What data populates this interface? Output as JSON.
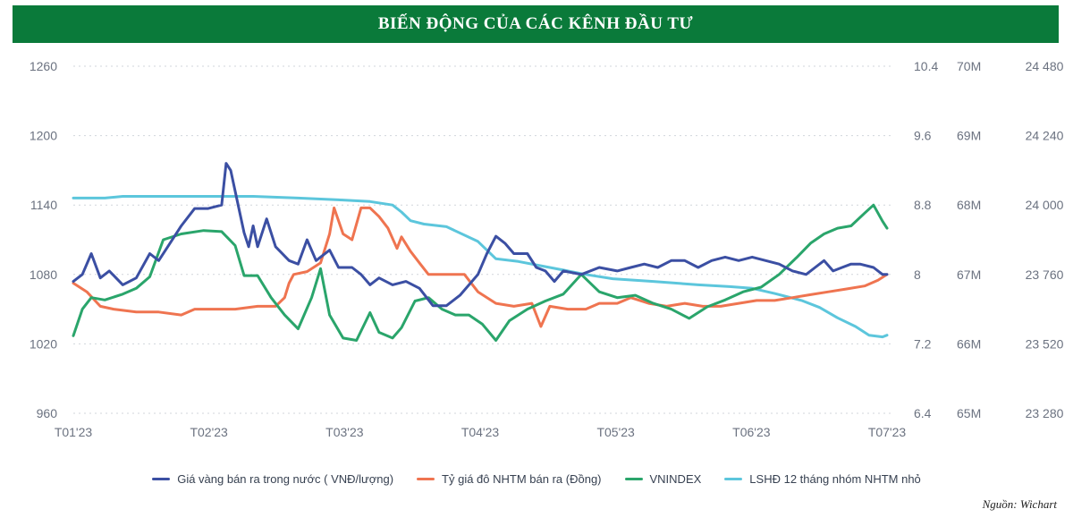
{
  "header": {
    "title": "BIẾN ĐỘNG CỦA CÁC KÊNH ĐẦU TƯ"
  },
  "source": "Nguồn: Wichart",
  "colors": {
    "banner": "#0a7a3a",
    "gold": "#3b4fa3",
    "fx": "#ef7450",
    "vnindex": "#2aa56b",
    "deposit": "#5cc6dc",
    "grid": "#d1d5db"
  },
  "chart_data": {
    "type": "line",
    "title": "",
    "x_ticks": [
      "T01'23",
      "T02'23",
      "T03'23",
      "T04'23",
      "T05'23",
      "T06'23",
      "T07'23"
    ],
    "x_range": [
      "2023-01-01",
      "2023-07-01"
    ],
    "grid": "horizontal dotted",
    "legend_position": "bottom",
    "axes": {
      "left": {
        "series": "VNINDEX",
        "ticks": [
          "1260",
          "1200",
          "1140",
          "1080",
          "1020",
          "960"
        ],
        "range": [
          960,
          1260
        ]
      },
      "right1": {
        "series": "LSHĐ 12 tháng nhóm NHTM nhỏ",
        "ticks": [
          "10.4",
          "9.6",
          "8.8",
          "8",
          "7.2",
          "6.4"
        ],
        "range": [
          6.4,
          10.4
        ]
      },
      "right2": {
        "series": "Giá vàng bán ra trong nước ( VNĐ/lượng)",
        "ticks": [
          "70M",
          "69M",
          "68M",
          "67M",
          "66M",
          "65M"
        ],
        "range": [
          65000000,
          70000000
        ]
      },
      "right3": {
        "series": "Tỷ giá đô NHTM bán ra (Đồng)",
        "ticks": [
          "24 480",
          "24 240",
          "24 000",
          "23 760",
          "23 520",
          "23 280"
        ],
        "range": [
          23280,
          24480
        ]
      }
    },
    "series": [
      {
        "name": "Giá vàng bán ra trong nước ( VNĐ/lượng)",
        "axis": "right2",
        "color": "#3b4fa3",
        "points": [
          [
            "2023-01-01",
            66900000
          ],
          [
            "2023-01-03",
            67000000
          ],
          [
            "2023-01-05",
            67300000
          ],
          [
            "2023-01-07",
            66950000
          ],
          [
            "2023-01-09",
            67050000
          ],
          [
            "2023-01-12",
            66850000
          ],
          [
            "2023-01-15",
            66950000
          ],
          [
            "2023-01-18",
            67300000
          ],
          [
            "2023-01-20",
            67200000
          ],
          [
            "2023-01-22",
            67400000
          ],
          [
            "2023-01-25",
            67700000
          ],
          [
            "2023-01-28",
            67950000
          ],
          [
            "2023-01-31",
            67950000
          ],
          [
            "2023-02-03",
            68000000
          ],
          [
            "2023-02-04",
            68600000
          ],
          [
            "2023-02-05",
            68500000
          ],
          [
            "2023-02-07",
            67900000
          ],
          [
            "2023-02-08",
            67600000
          ],
          [
            "2023-02-09",
            67400000
          ],
          [
            "2023-02-10",
            67700000
          ],
          [
            "2023-02-11",
            67400000
          ],
          [
            "2023-02-13",
            67800000
          ],
          [
            "2023-02-15",
            67400000
          ],
          [
            "2023-02-18",
            67200000
          ],
          [
            "2023-02-20",
            67150000
          ],
          [
            "2023-02-22",
            67500000
          ],
          [
            "2023-02-24",
            67200000
          ],
          [
            "2023-02-27",
            67350000
          ],
          [
            "2023-03-01",
            67100000
          ],
          [
            "2023-03-04",
            67100000
          ],
          [
            "2023-03-06",
            67000000
          ],
          [
            "2023-03-08",
            66850000
          ],
          [
            "2023-03-10",
            66950000
          ],
          [
            "2023-03-13",
            66850000
          ],
          [
            "2023-03-16",
            66900000
          ],
          [
            "2023-03-19",
            66800000
          ],
          [
            "2023-03-22",
            66550000
          ],
          [
            "2023-03-25",
            66550000
          ],
          [
            "2023-03-28",
            66700000
          ],
          [
            "2023-04-01",
            67000000
          ],
          [
            "2023-04-03",
            67300000
          ],
          [
            "2023-04-05",
            67550000
          ],
          [
            "2023-04-07",
            67450000
          ],
          [
            "2023-04-09",
            67300000
          ],
          [
            "2023-04-12",
            67300000
          ],
          [
            "2023-04-14",
            67100000
          ],
          [
            "2023-04-16",
            67050000
          ],
          [
            "2023-04-18",
            66900000
          ],
          [
            "2023-04-20",
            67050000
          ],
          [
            "2023-04-24",
            67000000
          ],
          [
            "2023-04-28",
            67100000
          ],
          [
            "2023-05-02",
            67050000
          ],
          [
            "2023-05-05",
            67100000
          ],
          [
            "2023-05-08",
            67150000
          ],
          [
            "2023-05-11",
            67100000
          ],
          [
            "2023-05-14",
            67200000
          ],
          [
            "2023-05-17",
            67200000
          ],
          [
            "2023-05-20",
            67100000
          ],
          [
            "2023-05-23",
            67200000
          ],
          [
            "2023-05-26",
            67250000
          ],
          [
            "2023-05-29",
            67200000
          ],
          [
            "2023-06-01",
            67250000
          ],
          [
            "2023-06-04",
            67200000
          ],
          [
            "2023-06-07",
            67150000
          ],
          [
            "2023-06-10",
            67050000
          ],
          [
            "2023-06-13",
            67000000
          ],
          [
            "2023-06-15",
            67100000
          ],
          [
            "2023-06-17",
            67200000
          ],
          [
            "2023-06-19",
            67050000
          ],
          [
            "2023-06-21",
            67100000
          ],
          [
            "2023-06-23",
            67150000
          ],
          [
            "2023-06-25",
            67150000
          ],
          [
            "2023-06-28",
            67100000
          ],
          [
            "2023-06-30",
            67000000
          ],
          [
            "2023-07-01",
            67000000
          ]
        ]
      },
      {
        "name": "Tỷ giá đô NHTM bán ra (Đồng)",
        "axis": "right3",
        "color": "#ef7450",
        "points": [
          [
            "2023-01-01",
            23730
          ],
          [
            "2023-01-04",
            23700
          ],
          [
            "2023-01-07",
            23650
          ],
          [
            "2023-01-10",
            23640
          ],
          [
            "2023-01-15",
            23630
          ],
          [
            "2023-01-20",
            23630
          ],
          [
            "2023-01-25",
            23620
          ],
          [
            "2023-01-28",
            23640
          ],
          [
            "2023-02-01",
            23640
          ],
          [
            "2023-02-06",
            23640
          ],
          [
            "2023-02-11",
            23650
          ],
          [
            "2023-02-15",
            23650
          ],
          [
            "2023-02-17",
            23680
          ],
          [
            "2023-02-18",
            23730
          ],
          [
            "2023-02-19",
            23760
          ],
          [
            "2023-02-22",
            23770
          ],
          [
            "2023-02-25",
            23800
          ],
          [
            "2023-02-27",
            23900
          ],
          [
            "2023-02-28",
            23990
          ],
          [
            "2023-03-02",
            23900
          ],
          [
            "2023-03-04",
            23880
          ],
          [
            "2023-03-06",
            23990
          ],
          [
            "2023-03-08",
            23990
          ],
          [
            "2023-03-10",
            23960
          ],
          [
            "2023-03-12",
            23920
          ],
          [
            "2023-03-14",
            23850
          ],
          [
            "2023-03-15",
            23890
          ],
          [
            "2023-03-17",
            23840
          ],
          [
            "2023-03-19",
            23800
          ],
          [
            "2023-03-21",
            23760
          ],
          [
            "2023-03-25",
            23760
          ],
          [
            "2023-03-29",
            23760
          ],
          [
            "2023-04-01",
            23700
          ],
          [
            "2023-04-05",
            23660
          ],
          [
            "2023-04-09",
            23650
          ],
          [
            "2023-04-13",
            23660
          ],
          [
            "2023-04-15",
            23580
          ],
          [
            "2023-04-17",
            23650
          ],
          [
            "2023-04-21",
            23640
          ],
          [
            "2023-04-25",
            23640
          ],
          [
            "2023-04-28",
            23660
          ],
          [
            "2023-05-02",
            23660
          ],
          [
            "2023-05-05",
            23680
          ],
          [
            "2023-05-09",
            23660
          ],
          [
            "2023-05-13",
            23650
          ],
          [
            "2023-05-17",
            23660
          ],
          [
            "2023-05-21",
            23650
          ],
          [
            "2023-05-25",
            23650
          ],
          [
            "2023-05-29",
            23660
          ],
          [
            "2023-06-02",
            23670
          ],
          [
            "2023-06-06",
            23670
          ],
          [
            "2023-06-10",
            23680
          ],
          [
            "2023-06-14",
            23690
          ],
          [
            "2023-06-18",
            23700
          ],
          [
            "2023-06-22",
            23710
          ],
          [
            "2023-06-26",
            23720
          ],
          [
            "2023-06-29",
            23740
          ],
          [
            "2023-07-01",
            23760
          ]
        ]
      },
      {
        "name": "VNINDEX",
        "axis": "left",
        "color": "#2aa56b",
        "points": [
          [
            "2023-01-01",
            1027
          ],
          [
            "2023-01-03",
            1050
          ],
          [
            "2023-01-05",
            1060
          ],
          [
            "2023-01-08",
            1058
          ],
          [
            "2023-01-12",
            1063
          ],
          [
            "2023-01-15",
            1068
          ],
          [
            "2023-01-18",
            1078
          ],
          [
            "2023-01-21",
            1110
          ],
          [
            "2023-01-25",
            1115
          ],
          [
            "2023-01-30",
            1118
          ],
          [
            "2023-02-03",
            1117
          ],
          [
            "2023-02-06",
            1105
          ],
          [
            "2023-02-08",
            1079
          ],
          [
            "2023-02-11",
            1079
          ],
          [
            "2023-02-14",
            1060
          ],
          [
            "2023-02-17",
            1045
          ],
          [
            "2023-02-20",
            1033
          ],
          [
            "2023-02-23",
            1060
          ],
          [
            "2023-02-25",
            1085
          ],
          [
            "2023-02-27",
            1045
          ],
          [
            "2023-03-02",
            1025
          ],
          [
            "2023-03-05",
            1023
          ],
          [
            "2023-03-08",
            1047
          ],
          [
            "2023-03-10",
            1030
          ],
          [
            "2023-03-13",
            1025
          ],
          [
            "2023-03-15",
            1034
          ],
          [
            "2023-03-18",
            1057
          ],
          [
            "2023-03-21",
            1060
          ],
          [
            "2023-03-24",
            1050
          ],
          [
            "2023-03-27",
            1045
          ],
          [
            "2023-03-30",
            1045
          ],
          [
            "2023-04-02",
            1037
          ],
          [
            "2023-04-05",
            1023
          ],
          [
            "2023-04-08",
            1040
          ],
          [
            "2023-04-12",
            1050
          ],
          [
            "2023-04-16",
            1057
          ],
          [
            "2023-04-20",
            1063
          ],
          [
            "2023-04-24",
            1080
          ],
          [
            "2023-04-28",
            1065
          ],
          [
            "2023-05-02",
            1060
          ],
          [
            "2023-05-06",
            1062
          ],
          [
            "2023-05-10",
            1055
          ],
          [
            "2023-05-14",
            1050
          ],
          [
            "2023-05-18",
            1042
          ],
          [
            "2023-05-22",
            1052
          ],
          [
            "2023-05-26",
            1058
          ],
          [
            "2023-05-30",
            1065
          ],
          [
            "2023-06-03",
            1069
          ],
          [
            "2023-06-07",
            1080
          ],
          [
            "2023-06-11",
            1095
          ],
          [
            "2023-06-14",
            1107
          ],
          [
            "2023-06-17",
            1115
          ],
          [
            "2023-06-20",
            1120
          ],
          [
            "2023-06-23",
            1122
          ],
          [
            "2023-06-26",
            1133
          ],
          [
            "2023-06-28",
            1140
          ],
          [
            "2023-06-30",
            1126
          ],
          [
            "2023-07-01",
            1120
          ]
        ]
      },
      {
        "name": "LSHĐ 12 tháng nhóm NHTM nhỏ",
        "axis": "right1",
        "color": "#5cc6dc",
        "points": [
          [
            "2023-01-01",
            8.88
          ],
          [
            "2023-01-08",
            8.88
          ],
          [
            "2023-01-12",
            8.9
          ],
          [
            "2023-01-20",
            8.9
          ],
          [
            "2023-02-01",
            8.9
          ],
          [
            "2023-02-10",
            8.9
          ],
          [
            "2023-02-20",
            8.88
          ],
          [
            "2023-03-01",
            8.86
          ],
          [
            "2023-03-08",
            8.84
          ],
          [
            "2023-03-13",
            8.8
          ],
          [
            "2023-03-15",
            8.72
          ],
          [
            "2023-03-17",
            8.62
          ],
          [
            "2023-03-20",
            8.58
          ],
          [
            "2023-03-25",
            8.55
          ],
          [
            "2023-04-01",
            8.38
          ],
          [
            "2023-04-05",
            8.18
          ],
          [
            "2023-04-10",
            8.15
          ],
          [
            "2023-04-15",
            8.1
          ],
          [
            "2023-04-20",
            8.05
          ],
          [
            "2023-04-25",
            8.0
          ],
          [
            "2023-05-01",
            7.95
          ],
          [
            "2023-05-10",
            7.92
          ],
          [
            "2023-05-20",
            7.88
          ],
          [
            "2023-05-27",
            7.86
          ],
          [
            "2023-06-01",
            7.84
          ],
          [
            "2023-06-06",
            7.78
          ],
          [
            "2023-06-12",
            7.7
          ],
          [
            "2023-06-16",
            7.62
          ],
          [
            "2023-06-20",
            7.5
          ],
          [
            "2023-06-24",
            7.4
          ],
          [
            "2023-06-27",
            7.3
          ],
          [
            "2023-06-30",
            7.28
          ],
          [
            "2023-07-01",
            7.3
          ]
        ]
      }
    ]
  }
}
